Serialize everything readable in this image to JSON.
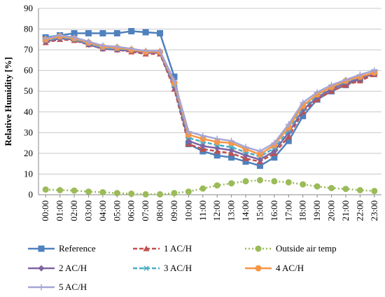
{
  "chart_data": {
    "type": "line",
    "title": "",
    "xlabel": "",
    "ylabel": "Relative Humidity [%]",
    "ylim": [
      0,
      90
    ],
    "yticks": [
      0,
      10,
      20,
      30,
      40,
      50,
      60,
      70,
      80,
      90
    ],
    "grid": "horizontal",
    "legend_position": "bottom",
    "categories": [
      "00:00",
      "01:00",
      "02:00",
      "03:00",
      "04:00",
      "05:00",
      "06:00",
      "07:00",
      "08:00",
      "09:00",
      "10:00",
      "11:00",
      "12:00",
      "13:00",
      "14:00",
      "15:00",
      "16:00",
      "17:00",
      "18:00",
      "19:00",
      "20:00",
      "21:00",
      "22:00",
      "23:00"
    ],
    "series": [
      {
        "name": "Reference",
        "color": "#4f81bd",
        "dash": "solid",
        "marker": "square",
        "values": [
          76,
          77,
          78,
          78,
          78,
          78,
          79,
          78.5,
          78,
          57,
          24.5,
          21,
          19,
          18,
          16,
          14,
          18,
          26,
          38,
          46,
          50,
          53,
          56,
          59
        ]
      },
      {
        "name": "1 AC/H",
        "color": "#c0504d",
        "dash": "dashed",
        "marker": "triangle",
        "values": [
          73.5,
          75,
          74.5,
          72.5,
          70.5,
          70,
          69,
          68,
          68,
          51,
          24.5,
          22,
          21,
          20,
          17.5,
          16,
          20,
          28,
          40,
          46,
          50,
          53,
          55,
          58
        ]
      },
      {
        "name": "Outside air temp",
        "color": "#9bbb59",
        "dash": "dotted",
        "marker": "circle",
        "values": [
          2.5,
          2.2,
          2,
          1.5,
          1.2,
          0.8,
          0.5,
          0.2,
          0.2,
          0.8,
          1.5,
          3,
          4.5,
          5.5,
          6.5,
          7,
          6.5,
          6,
          5,
          4,
          3.2,
          2.8,
          2.2,
          1.8
        ]
      },
      {
        "name": "2 AC/H",
        "color": "#8064a2",
        "dash": "solid",
        "marker": "diamond",
        "values": [
          74,
          75.5,
          75,
          72.5,
          70.5,
          70,
          69.5,
          68.5,
          68.5,
          52,
          26,
          23.5,
          22.5,
          21.5,
          19,
          17,
          21,
          30,
          41,
          47,
          51,
          54,
          56,
          58.5
        ]
      },
      {
        "name": "3 AC/H",
        "color": "#4bacc6",
        "dash": "dashed",
        "marker": "asterisk",
        "values": [
          74.5,
          76,
          75,
          73,
          71,
          70.5,
          70,
          69,
          69,
          53,
          27.5,
          25.5,
          24,
          23,
          20.5,
          18.5,
          22.5,
          31,
          42,
          48,
          52,
          54.5,
          57,
          59
        ]
      },
      {
        "name": "4 AC/H",
        "color": "#f79646",
        "dash": "solid",
        "marker": "circle",
        "values": [
          75,
          76.5,
          75.5,
          73.5,
          71.5,
          71,
          70,
          69,
          69,
          54,
          29,
          27,
          25.5,
          25,
          22,
          19.5,
          24,
          32.5,
          43,
          48.5,
          52,
          55,
          57,
          59
        ]
      },
      {
        "name": "5 AC/H",
        "color": "#a5a5d6",
        "dash": "solid",
        "marker": "plus",
        "values": [
          75.5,
          77,
          76,
          74,
          72,
          71.5,
          70.5,
          69.5,
          69.5,
          55,
          30.5,
          28.5,
          27,
          26,
          23,
          21,
          25,
          34,
          44.5,
          49.5,
          53,
          55.5,
          58,
          60
        ]
      }
    ]
  }
}
